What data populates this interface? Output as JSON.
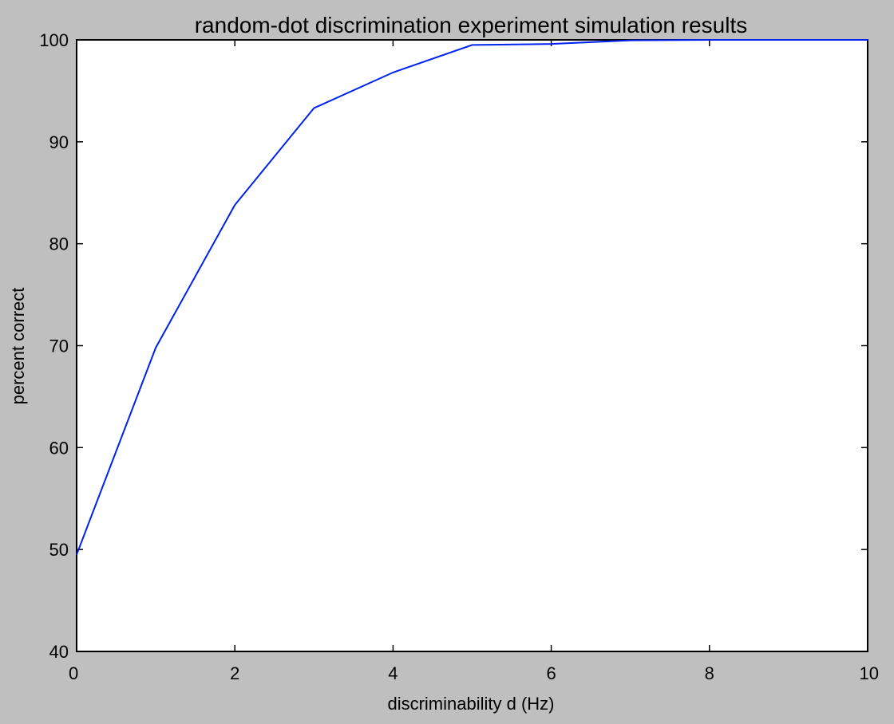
{
  "chart_data": {
    "type": "line",
    "title": "random-dot discrimination experiment simulation results",
    "xlabel": "discriminability d (Hz)",
    "ylabel": "percent correct",
    "xlim": [
      0,
      10
    ],
    "ylim": [
      40,
      100
    ],
    "xticks": [
      0,
      2,
      4,
      6,
      8,
      10
    ],
    "yticks": [
      40,
      50,
      60,
      70,
      80,
      90,
      100
    ],
    "grid": false,
    "series": [
      {
        "color": "#0022ee",
        "x": [
          0,
          1,
          2,
          3,
          4,
          5,
          6,
          7,
          8,
          9,
          10
        ],
        "y": [
          49.5,
          69.8,
          83.8,
          93.3,
          96.8,
          99.5,
          99.6,
          99.95,
          100,
          100,
          100
        ]
      }
    ]
  }
}
